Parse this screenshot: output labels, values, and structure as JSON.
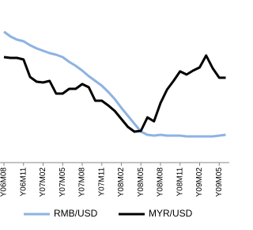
{
  "chart_data": {
    "type": "line",
    "categories": [
      "Y06M08",
      null,
      null,
      "Y06M11",
      null,
      null,
      "Y07M02",
      null,
      null,
      "Y07M05",
      null,
      null,
      "Y07M08",
      null,
      null,
      "Y07M11",
      null,
      null,
      "Y08M02",
      null,
      null,
      "Y08M05",
      null,
      null,
      "Y08M08",
      null,
      null,
      "Y08M11",
      null,
      null,
      "Y09M02",
      null,
      null,
      "Y09M05",
      null
    ],
    "series": [
      {
        "name": "RMB/USD",
        "color": "#8db3e2",
        "values": [
          160,
          154,
          150,
          148,
          143,
          139,
          136,
          133,
          131,
          128,
          122,
          117,
          111,
          104,
          98,
          92,
          84,
          75,
          64,
          54,
          44,
          34,
          30,
          29,
          30,
          29,
          29,
          29,
          28,
          28,
          28,
          28,
          28,
          29,
          30
        ]
      },
      {
        "name": "MYR/USD",
        "color": "#000000",
        "values": [
          128,
          127,
          127,
          125,
          103,
          97,
          96,
          98,
          82,
          82,
          88,
          88,
          94,
          90,
          73,
          73,
          67,
          60,
          50,
          40,
          34,
          35,
          52,
          47,
          70,
          87,
          98,
          110,
          106,
          111,
          115,
          130,
          114,
          102,
          102
        ]
      }
    ],
    "ylim": [
      0,
      200
    ],
    "legend": "bottom"
  }
}
